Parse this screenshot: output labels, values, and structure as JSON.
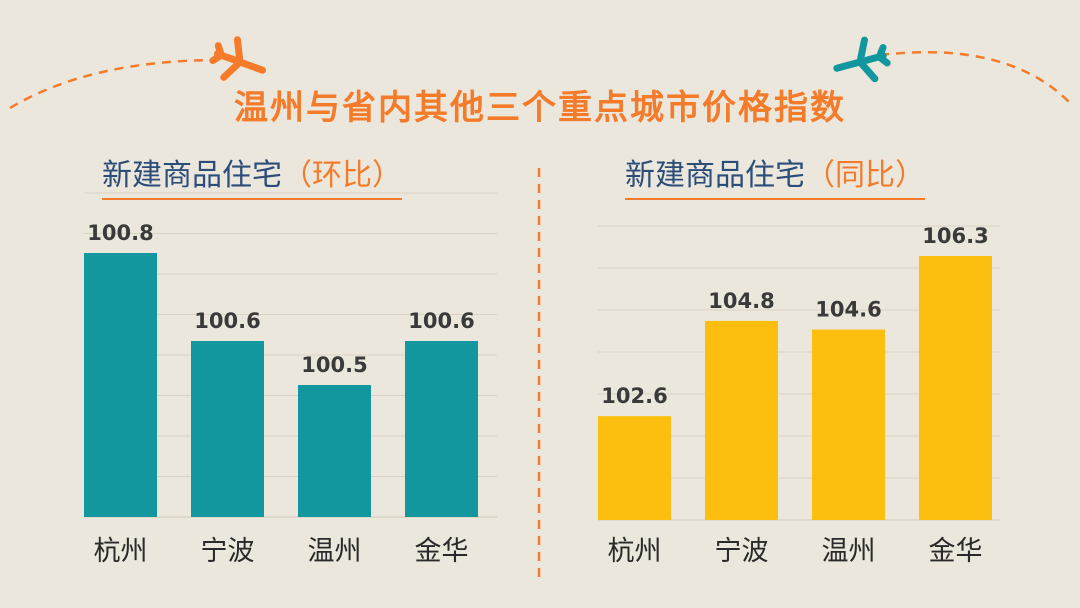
{
  "title": "温州与省内其他三个重点城市价格指数",
  "colors": {
    "background": "#ece7dc",
    "title": "#f47b2a",
    "subtitle": "#2b4d7a",
    "accent": "#f47b2a",
    "teal": "#13979e",
    "yellow": "#fdbf0f",
    "plane_orange": "#f47b2a",
    "plane_teal": "#13979e"
  },
  "icons": [
    "airplane-icon-orange",
    "airplane-icon-teal"
  ],
  "chart_data": [
    {
      "type": "bar",
      "title_lead": "新建商品住宅",
      "title_paren": "（环比）",
      "categories": [
        "杭州",
        "宁波",
        "温州",
        "金华"
      ],
      "values": [
        100.8,
        100.6,
        100.5,
        100.6
      ],
      "value_labels": [
        "100.8",
        "100.6",
        "100.5",
        "100.6"
      ],
      "ylim": [
        100.2,
        100.8
      ],
      "grid": true,
      "color": "#13979e"
    },
    {
      "type": "bar",
      "title_lead": "新建商品住宅",
      "title_paren": "（同比）",
      "categories": [
        "杭州",
        "宁波",
        "温州",
        "金华"
      ],
      "values": [
        102.6,
        104.8,
        104.6,
        106.3
      ],
      "value_labels": [
        "102.6",
        "104.8",
        "104.6",
        "106.3"
      ],
      "ylim": [
        100.2,
        106.3
      ],
      "grid": true,
      "color": "#fdbf0f"
    }
  ]
}
